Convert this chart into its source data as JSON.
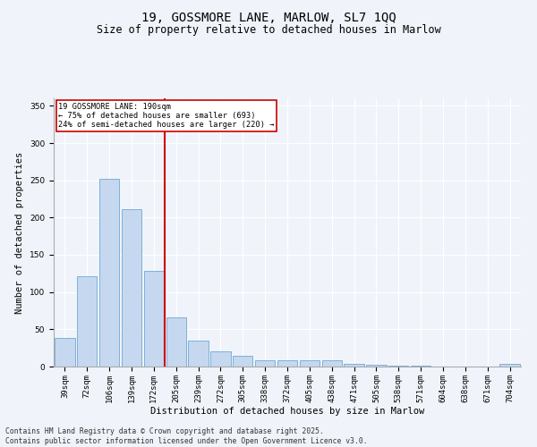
{
  "title": "19, GOSSMORE LANE, MARLOW, SL7 1QQ",
  "subtitle": "Size of property relative to detached houses in Marlow",
  "xlabel": "Distribution of detached houses by size in Marlow",
  "ylabel": "Number of detached properties",
  "categories": [
    "39sqm",
    "72sqm",
    "106sqm",
    "139sqm",
    "172sqm",
    "205sqm",
    "239sqm",
    "272sqm",
    "305sqm",
    "338sqm",
    "372sqm",
    "405sqm",
    "438sqm",
    "471sqm",
    "505sqm",
    "538sqm",
    "571sqm",
    "604sqm",
    "638sqm",
    "671sqm",
    "704sqm"
  ],
  "values": [
    38,
    121,
    252,
    211,
    128,
    66,
    35,
    20,
    14,
    8,
    9,
    9,
    8,
    4,
    2,
    1,
    1,
    0,
    0,
    0,
    4
  ],
  "bar_color": "#c5d8ef",
  "bar_edge_color": "#6fa8d4",
  "vline_x": 4.5,
  "vline_color": "#cc0000",
  "annotation_text": "19 GOSSMORE LANE: 190sqm\n← 75% of detached houses are smaller (693)\n24% of semi-detached houses are larger (220) →",
  "annotation_box_color": "#cc0000",
  "annotation_bg": "#ffffff",
  "ylim": [
    0,
    360
  ],
  "yticks": [
    0,
    50,
    100,
    150,
    200,
    250,
    300,
    350
  ],
  "footer": "Contains HM Land Registry data © Crown copyright and database right 2025.\nContains public sector information licensed under the Open Government Licence v3.0.",
  "bg_color": "#f0f4fa",
  "plot_bg_color": "#f0f4fa",
  "title_fontsize": 10,
  "subtitle_fontsize": 8.5,
  "label_fontsize": 7.5,
  "tick_fontsize": 6.5,
  "footer_fontsize": 5.8
}
